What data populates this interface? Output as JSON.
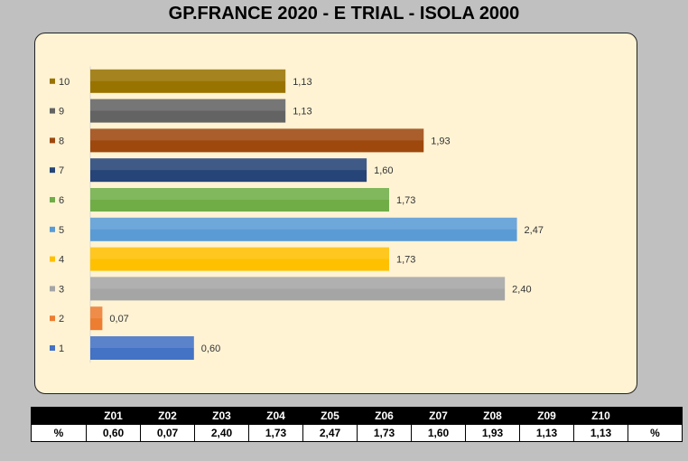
{
  "title": "GP.FRANCE 2020 - E TRIAL - ISOLA 2000",
  "chart_data": {
    "type": "bar",
    "orientation": "horizontal",
    "title": "GP.FRANCE 2020 - E TRIAL - ISOLA 2000",
    "categories": [
      "1",
      "2",
      "3",
      "4",
      "5",
      "6",
      "7",
      "8",
      "9",
      "10"
    ],
    "values": [
      0.6,
      0.07,
      2.4,
      1.73,
      2.47,
      1.73,
      1.6,
      1.93,
      1.13,
      1.13
    ],
    "value_labels": [
      "0,60",
      "0,07",
      "2,40",
      "1,73",
      "2,47",
      "1,73",
      "1,60",
      "1,93",
      "1,13",
      "1,13"
    ],
    "colors": [
      "#4472c4",
      "#ed7d31",
      "#a5a5a5",
      "#ffc000",
      "#5b9bd5",
      "#70ad47",
      "#264478",
      "#9e480e",
      "#636363",
      "#997300"
    ],
    "xlim": [
      0,
      2.65
    ],
    "grid": false,
    "legend": "left"
  },
  "table": {
    "headers": [
      "",
      "Z01",
      "Z02",
      "Z03",
      "Z04",
      "Z05",
      "Z06",
      "Z07",
      "Z08",
      "Z09",
      "Z10",
      ""
    ],
    "row_label": "%",
    "values": [
      "0,60",
      "0,07",
      "2,40",
      "1,73",
      "2,47",
      "1,73",
      "1,60",
      "1,93",
      "1,13",
      "1,13"
    ],
    "row_end": "%"
  }
}
